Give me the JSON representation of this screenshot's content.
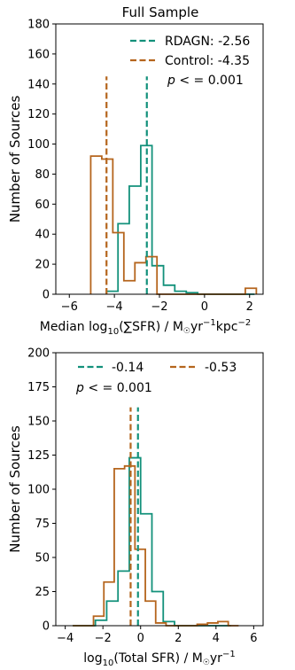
{
  "colors": {
    "rdagn": "#13917b",
    "control": "#b5651d"
  },
  "chart_data": [
    {
      "type": "histogram",
      "title": "Full Sample",
      "xlabel_parts": {
        "pre": "Median log",
        "sub": "10",
        "mid": "(∑SFR) / M",
        "sun": "☉",
        "mid2": "yr",
        "sup1": "−1",
        "mid3": "kpc",
        "sup2": "−2"
      },
      "ylabel": "Number of Sources",
      "xlim": [
        -6.6,
        2.6
      ],
      "ylim": [
        0,
        180
      ],
      "xticks": [
        -6,
        -4,
        -2,
        0,
        2
      ],
      "xtick_labels": [
        "−6",
        "−4",
        "−2",
        "0",
        "2"
      ],
      "yticks": [
        0,
        20,
        40,
        60,
        80,
        100,
        120,
        140,
        160,
        180
      ],
      "ytick_labels": [
        "0",
        "20",
        "40",
        "60",
        "80",
        "100",
        "120",
        "140",
        "160",
        "180"
      ],
      "legend_position": "top-right",
      "series": [
        {
          "name": "RDAGN",
          "legend_label": "RDAGN: -2.56",
          "color": "#13917b",
          "median": -2.56,
          "edges": [
            -4.35,
            -3.84,
            -3.34,
            -2.83,
            -2.33,
            -1.82,
            -1.32,
            -0.81,
            -0.3,
            0.2,
            0.71,
            1.21,
            1.72,
            2.22
          ],
          "counts": [
            2,
            47,
            72,
            99,
            19,
            6,
            2,
            1,
            0,
            0,
            0,
            0,
            0
          ]
        },
        {
          "name": "Control",
          "legend_label": "Control: -4.35",
          "color": "#b5651d",
          "median": -4.35,
          "edges": [
            -5.05,
            -4.56,
            -4.07,
            -3.58,
            -3.09,
            -2.6,
            -2.11,
            -1.62,
            -1.13,
            -0.64,
            -0.15,
            0.34,
            0.83,
            1.32,
            1.81,
            2.3
          ],
          "counts": [
            92,
            90,
            41,
            9,
            21,
            25,
            0,
            0,
            0,
            0,
            0,
            0,
            0,
            0,
            4
          ]
        }
      ],
      "annotation": {
        "p_symbol": "p",
        "text": " <  =  0.001"
      }
    },
    {
      "type": "histogram",
      "xlabel_parts": {
        "pre": "log",
        "sub": "10",
        "mid": "(Total SFR) / M",
        "sun": "☉",
        "mid2": "yr",
        "sup1": "−1"
      },
      "ylabel": "Number of Sources",
      "xlim": [
        -4.5,
        6.5
      ],
      "ylim": [
        0,
        200
      ],
      "xticks": [
        -4,
        -2,
        0,
        2,
        4,
        6
      ],
      "xtick_labels": [
        "−4",
        "−2",
        "0",
        "2",
        "4",
        "6"
      ],
      "yticks": [
        0,
        25,
        50,
        75,
        100,
        125,
        150,
        175,
        200
      ],
      "ytick_labels": [
        "0",
        "25",
        "50",
        "75",
        "100",
        "125",
        "150",
        "175",
        "200"
      ],
      "legend_position": "top",
      "series": [
        {
          "name": "RDAGN",
          "legend_label": "-0.14",
          "color": "#13917b",
          "median": -0.14,
          "edges": [
            -3.6,
            -3.0,
            -2.4,
            -1.8,
            -1.2,
            -0.6,
            0.0,
            0.6,
            1.2,
            1.8,
            2.4,
            3.0,
            3.6,
            4.2,
            4.8
          ],
          "counts": [
            0,
            0,
            4,
            18,
            40,
            123,
            82,
            25,
            3,
            0,
            0,
            0,
            0,
            0
          ]
        },
        {
          "name": "Control",
          "legend_label": "-0.53",
          "color": "#b5651d",
          "median": -0.53,
          "edges": [
            -3.6,
            -3.05,
            -2.5,
            -1.95,
            -1.4,
            -0.85,
            -0.3,
            0.25,
            0.8,
            1.35,
            1.9,
            2.45,
            3.0,
            3.55,
            4.1,
            4.65,
            5.2
          ],
          "counts": [
            0,
            0,
            7,
            32,
            115,
            117,
            56,
            18,
            2,
            0,
            0,
            0,
            1,
            2,
            3,
            0
          ]
        }
      ],
      "annotation": {
        "p_symbol": "p",
        "text": " <  =  0.001"
      }
    }
  ]
}
